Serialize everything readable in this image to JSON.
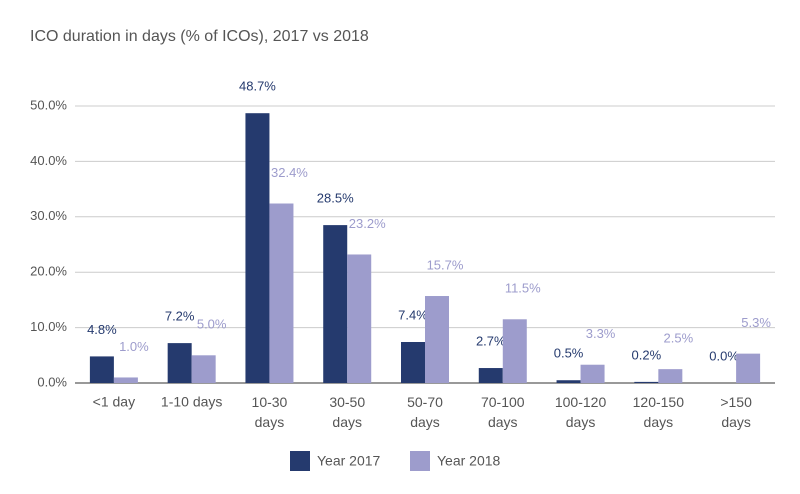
{
  "chart_data": {
    "type": "bar",
    "title": "ICO duration in days (% of ICOs), 2017 vs 2018",
    "categories": [
      "<1 day",
      "1-10 days",
      "10-30\ndays",
      "30-50\ndays",
      "50-70\ndays",
      "70-100\ndays",
      "100-120\ndays",
      "120-150\ndays",
      ">150\ndays"
    ],
    "series": [
      {
        "name": "Year 2017",
        "color": "#253a6e",
        "values": [
          4.8,
          7.2,
          48.7,
          28.5,
          7.4,
          2.7,
          0.5,
          0.2,
          0.0
        ],
        "value_labels": [
          "4.8%",
          "7.2%",
          "48.7%",
          "28.5%",
          "7.4%",
          "2.7%",
          "0.5%",
          "0.2%",
          "0.0%"
        ]
      },
      {
        "name": "Year 2018",
        "color": "#9d9ccc",
        "values": [
          1.0,
          5.0,
          32.4,
          23.2,
          15.7,
          11.5,
          3.3,
          2.5,
          5.3
        ],
        "value_labels": [
          "1.0%",
          "5.0%",
          "32.4%",
          "23.2%",
          "15.7%",
          "11.5%",
          "3.3%",
          "2.5%",
          "5.3%"
        ]
      }
    ],
    "ylim": [
      0,
      50
    ],
    "yticks": [
      {
        "value": 0,
        "label": "0.0%"
      },
      {
        "value": 10,
        "label": "10.0%"
      },
      {
        "value": 20,
        "label": "20.0%"
      },
      {
        "value": 30,
        "label": "30.0%"
      },
      {
        "value": 40,
        "label": "40.0%"
      },
      {
        "value": 50,
        "label": "50.0%"
      }
    ],
    "grid": true
  }
}
